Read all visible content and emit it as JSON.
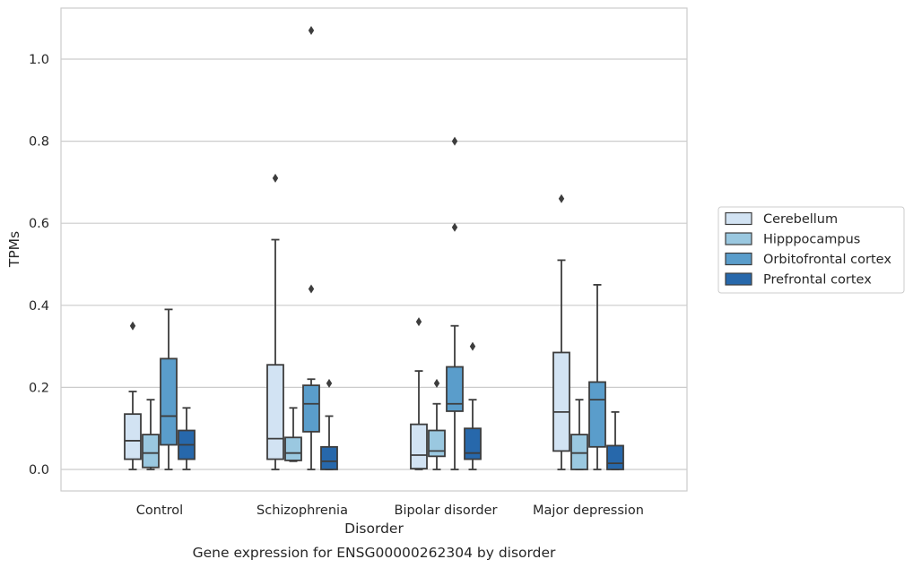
{
  "chart_data": {
    "type": "boxplot",
    "title": "Gene expression for ENSG00000262304 by disorder",
    "xlabel": "Disorder",
    "ylabel": "TPMs",
    "ylim": [
      -0.05,
      1.13
    ],
    "yticks": [
      "0.0",
      "0.2",
      "0.4",
      "0.6",
      "0.8",
      "1.0"
    ],
    "grid": true,
    "legend_position": "right",
    "categories": [
      "Control",
      "Schizophrenia",
      "Bipolar disorder",
      "Major depression"
    ],
    "series": [
      {
        "name": "Cerebellum",
        "color": "#d2e3f3",
        "boxes": [
          {
            "min": 0.0,
            "q1": 0.025,
            "median": 0.07,
            "q3": 0.135,
            "max": 0.19,
            "outliers": [
              0.35
            ]
          },
          {
            "min": 0.0,
            "q1": 0.025,
            "median": 0.075,
            "q3": 0.255,
            "max": 0.56,
            "outliers": [
              0.71
            ]
          },
          {
            "min": 0.0,
            "q1": 0.002,
            "median": 0.035,
            "q3": 0.11,
            "max": 0.24,
            "outliers": [
              0.36
            ]
          },
          {
            "min": 0.0,
            "q1": 0.045,
            "median": 0.14,
            "q3": 0.285,
            "max": 0.51,
            "outliers": [
              0.66
            ]
          }
        ]
      },
      {
        "name": "Hipppocampus",
        "color": "#9ac8e0",
        "boxes": [
          {
            "min": 0.0,
            "q1": 0.005,
            "median": 0.04,
            "q3": 0.085,
            "max": 0.17,
            "outliers": []
          },
          {
            "min": 0.02,
            "q1": 0.022,
            "median": 0.04,
            "q3": 0.078,
            "max": 0.15,
            "outliers": []
          },
          {
            "min": 0.0,
            "q1": 0.032,
            "median": 0.045,
            "q3": 0.095,
            "max": 0.16,
            "outliers": [
              0.21
            ]
          },
          {
            "min": 0.0,
            "q1": 0.0,
            "median": 0.04,
            "q3": 0.085,
            "max": 0.17,
            "outliers": []
          }
        ]
      },
      {
        "name": "Orbitofrontal cortex",
        "color": "#5a9dcb",
        "boxes": [
          {
            "min": 0.0,
            "q1": 0.06,
            "median": 0.13,
            "q3": 0.27,
            "max": 0.39,
            "outliers": []
          },
          {
            "min": 0.0,
            "q1": 0.092,
            "median": 0.16,
            "q3": 0.205,
            "max": 0.22,
            "outliers": [
              0.44,
              1.07
            ]
          },
          {
            "min": 0.0,
            "q1": 0.142,
            "median": 0.16,
            "q3": 0.25,
            "max": 0.35,
            "outliers": [
              0.59,
              0.8
            ]
          },
          {
            "min": 0.0,
            "q1": 0.055,
            "median": 0.17,
            "q3": 0.213,
            "max": 0.45,
            "outliers": []
          }
        ]
      },
      {
        "name": "Prefrontal cortex",
        "color": "#2768ab",
        "boxes": [
          {
            "min": 0.0,
            "q1": 0.025,
            "median": 0.06,
            "q3": 0.095,
            "max": 0.15,
            "outliers": []
          },
          {
            "min": 0.0,
            "q1": 0.0,
            "median": 0.02,
            "q3": 0.055,
            "max": 0.13,
            "outliers": [
              0.21
            ]
          },
          {
            "min": 0.0,
            "q1": 0.025,
            "median": 0.04,
            "q3": 0.1,
            "max": 0.17,
            "outliers": [
              0.3
            ]
          },
          {
            "min": 0.0,
            "q1": 0.0,
            "median": 0.015,
            "q3": 0.058,
            "max": 0.14,
            "outliers": []
          }
        ]
      }
    ]
  }
}
